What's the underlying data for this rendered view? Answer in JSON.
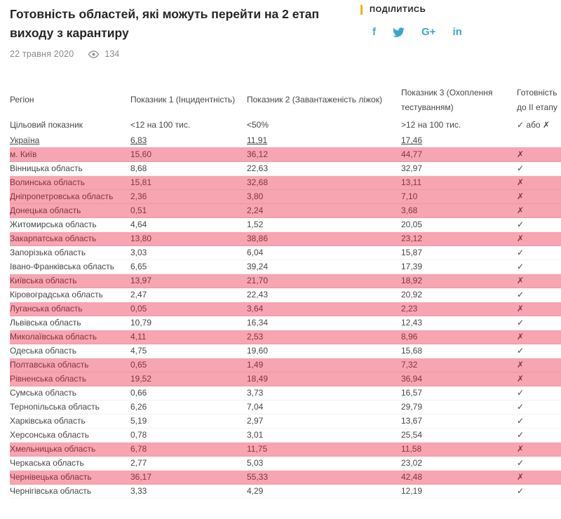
{
  "header": {
    "title": "Готовність областей, які можуть перейти на 2 етап виходу з карантиру",
    "date": "22 травня 2020",
    "views": "134"
  },
  "share": {
    "label": "ПОДІЛИТИСЬ",
    "icons": [
      {
        "name": "facebook",
        "glyph": "f"
      },
      {
        "name": "twitter",
        "glyph": ""
      },
      {
        "name": "google-plus",
        "glyph": "G+"
      },
      {
        "name": "linkedin",
        "glyph": "in"
      }
    ],
    "accent_color": "#f6b40e",
    "icon_color": "#3ea6c9"
  },
  "table": {
    "columns": [
      "Регіон",
      "Показник 1 (Інцидентність)",
      "Показник 2 (Завантаженість ліжок)",
      "Показник 3 (Охоплення тестуванням)",
      "Готовність до II етапу"
    ],
    "target_row": {
      "label": "Цільовий показник",
      "values": [
        "<12 на 100 тис.",
        "<50%",
        ">12 на 100 тис.",
        "✓ або ✗"
      ]
    },
    "summary_row": {
      "label": "Україна",
      "values": [
        "6,83",
        "11,91",
        "17,46"
      ]
    },
    "highlight_bg": "#f6a5b1",
    "highlight_text": "#84353f",
    "rows": [
      {
        "region": "м. Київ",
        "v1": "15,60",
        "v2": "36,12",
        "v3": "44,77",
        "ready": "✗",
        "highlight": true
      },
      {
        "region": "Вінницька область",
        "v1": "8,68",
        "v2": "22,63",
        "v3": "32,97",
        "ready": "✓",
        "highlight": false
      },
      {
        "region": "Волинська область",
        "v1": "15,81",
        "v2": "32,68",
        "v3": "13,11",
        "ready": "✗",
        "highlight": true
      },
      {
        "region": "Дніпропетровська область",
        "v1": "2,36",
        "v2": "3,80",
        "v3": "7,10",
        "ready": "✗",
        "highlight": true
      },
      {
        "region": "Донецька область",
        "v1": "0,51",
        "v2": "2,24",
        "v3": "3,68",
        "ready": "✗",
        "highlight": true
      },
      {
        "region": "Житомирська область",
        "v1": "4,64",
        "v2": "1,52",
        "v3": "20,05",
        "ready": "✓",
        "highlight": false
      },
      {
        "region": "Закарпатська область",
        "v1": "13,80",
        "v2": "38,86",
        "v3": "23,12",
        "ready": "✗",
        "highlight": true
      },
      {
        "region": "Запорізька область",
        "v1": "3,03",
        "v2": "6,04",
        "v3": "15,87",
        "ready": "✓",
        "highlight": false
      },
      {
        "region": "Івано-Франківська область",
        "v1": "6,65",
        "v2": "39,24",
        "v3": "17,39",
        "ready": "✓",
        "highlight": false
      },
      {
        "region": "Київська область",
        "v1": "13,97",
        "v2": "21,70",
        "v3": "18,92",
        "ready": "✗",
        "highlight": true
      },
      {
        "region": "Кіровоградська область",
        "v1": "2,47",
        "v2": "22,43",
        "v3": "20,92",
        "ready": "✓",
        "highlight": false
      },
      {
        "region": "Луганська область",
        "v1": "0,05",
        "v2": "3,64",
        "v3": "2,23",
        "ready": "✗",
        "highlight": true
      },
      {
        "region": "Львівська область",
        "v1": "10,79",
        "v2": "16,34",
        "v3": "12,43",
        "ready": "✓",
        "highlight": false
      },
      {
        "region": "Миколаївська область",
        "v1": "4,11",
        "v2": "2,53",
        "v3": "8,96",
        "ready": "✗",
        "highlight": true
      },
      {
        "region": "Одеська область",
        "v1": "4,75",
        "v2": "19,60",
        "v3": "15,68",
        "ready": "✓",
        "highlight": false
      },
      {
        "region": "Полтавська область",
        "v1": "0,65",
        "v2": "1,49",
        "v3": "7,32",
        "ready": "✗",
        "highlight": true
      },
      {
        "region": "Рівненська область",
        "v1": "19,52",
        "v2": "18,49",
        "v3": "36,94",
        "ready": "✗",
        "highlight": true
      },
      {
        "region": "Сумська область",
        "v1": "0,66",
        "v2": "3,73",
        "v3": "16,57",
        "ready": "✓",
        "highlight": false
      },
      {
        "region": "Тернопільська область",
        "v1": "6,26",
        "v2": "7,04",
        "v3": "29,79",
        "ready": "✓",
        "highlight": false
      },
      {
        "region": "Харківська область",
        "v1": "5,19",
        "v2": "2,97",
        "v3": "13,67",
        "ready": "✓",
        "highlight": false
      },
      {
        "region": "Херсонська область",
        "v1": "0,78",
        "v2": "3,01",
        "v3": "25,54",
        "ready": "✓",
        "highlight": false
      },
      {
        "region": "Хмельницька область",
        "v1": "6,78",
        "v2": "11,75",
        "v3": "11,58",
        "ready": "✗",
        "highlight": true
      },
      {
        "region": "Черкаська область",
        "v1": "2,77",
        "v2": "5,03",
        "v3": "23,02",
        "ready": "✓",
        "highlight": false
      },
      {
        "region": "Чернівецька область",
        "v1": "36,17",
        "v2": "55,33",
        "v3": "42,48",
        "ready": "✗",
        "highlight": true
      },
      {
        "region": "Чернігівська область",
        "v1": "3,33",
        "v2": "4,29",
        "v3": "12,19",
        "ready": "✓",
        "highlight": false
      }
    ]
  }
}
